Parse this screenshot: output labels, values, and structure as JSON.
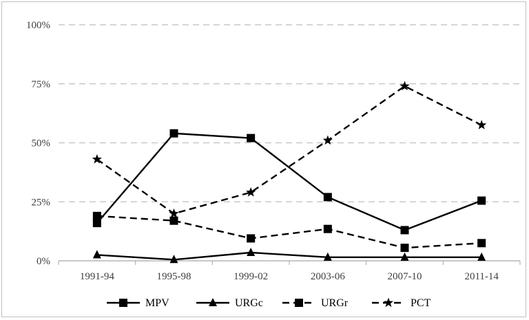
{
  "chart_data": {
    "type": "line",
    "title": "",
    "xlabel": "",
    "ylabel": "",
    "categories": [
      "1991-94",
      "1995-98",
      "1999-02",
      "2003-06",
      "2007-10",
      "2011-14"
    ],
    "yticks": [
      "0%",
      "25%",
      "50%",
      "75%",
      "100%"
    ],
    "ylim": [
      0,
      100
    ],
    "grid": "horizontal dashed",
    "legend_position": "bottom",
    "series": [
      {
        "name": "MPV",
        "values": [
          16,
          54,
          52,
          27,
          13,
          25.5
        ],
        "marker": "square",
        "dash": "solid",
        "color": "#000000"
      },
      {
        "name": "URGc",
        "values": [
          2.5,
          0.5,
          3.5,
          1.5,
          1.5,
          1.5
        ],
        "marker": "triangle",
        "dash": "solid",
        "color": "#000000"
      },
      {
        "name": "URGr",
        "values": [
          19,
          17,
          9.5,
          13.5,
          5.5,
          7.5
        ],
        "marker": "square",
        "dash": "dashed",
        "color": "#000000"
      },
      {
        "name": "PCT",
        "values": [
          43,
          20,
          29,
          51,
          74,
          57.5
        ],
        "marker": "star",
        "dash": "dashed",
        "color": "#000000"
      }
    ]
  }
}
